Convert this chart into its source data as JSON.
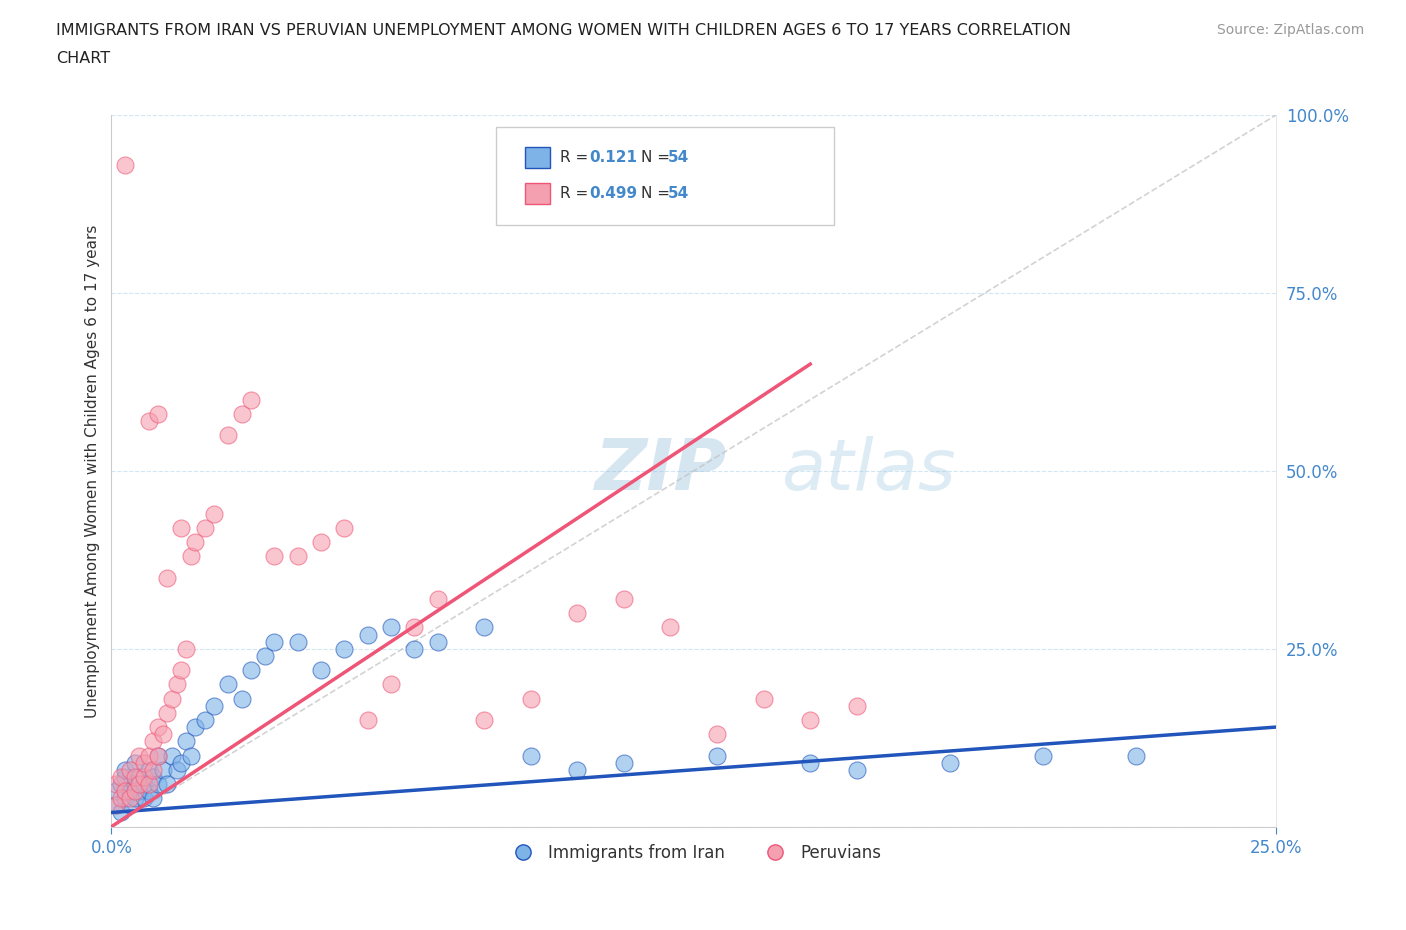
{
  "title_line1": "IMMIGRANTS FROM IRAN VS PERUVIAN UNEMPLOYMENT AMONG WOMEN WITH CHILDREN AGES 6 TO 17 YEARS CORRELATION",
  "title_line2": "CHART",
  "source_text": "Source: ZipAtlas.com",
  "ylabel": "Unemployment Among Women with Children Ages 6 to 17 years",
  "xlim": [
    0.0,
    0.25
  ],
  "ylim": [
    0.0,
    1.0
  ],
  "ytick_vals": [
    0.0,
    0.25,
    0.5,
    0.75,
    1.0
  ],
  "ytick_labels": [
    "",
    "25.0%",
    "50.0%",
    "75.0%",
    "100.0%"
  ],
  "xtick_vals": [
    0.0,
    0.25
  ],
  "xtick_labels": [
    "0.0%",
    "25.0%"
  ],
  "color_iran": "#7EB3E8",
  "color_peru": "#F5A0B0",
  "color_iran_line": "#2255BB",
  "color_peru_line": "#EE5577",
  "color_diag": "#C0C0C0",
  "watermark": "ZIPatlas",
  "watermark_color": "#C8DFF0",
  "legend_label1": "R =  0.121   N = 54",
  "legend_label2": "R = 0.499   N = 54",
  "legend_r1": "R =  0.121",
  "legend_r2": "R = 0.499",
  "legend_n": "N = 54",
  "iran_trend_x0": 0.0,
  "iran_trend_y0": 0.02,
  "iran_trend_x1": 0.25,
  "iran_trend_y1": 0.14,
  "peru_trend_x0": 0.0,
  "peru_trend_y0": 0.0,
  "peru_trend_x1": 0.15,
  "peru_trend_y1": 0.65,
  "iran_x": [
    0.001,
    0.001,
    0.002,
    0.002,
    0.003,
    0.003,
    0.003,
    0.004,
    0.004,
    0.005,
    0.005,
    0.005,
    0.006,
    0.006,
    0.007,
    0.007,
    0.008,
    0.008,
    0.009,
    0.009,
    0.01,
    0.01,
    0.011,
    0.012,
    0.013,
    0.014,
    0.015,
    0.016,
    0.017,
    0.018,
    0.02,
    0.022,
    0.025,
    0.028,
    0.03,
    0.033,
    0.035,
    0.04,
    0.045,
    0.05,
    0.055,
    0.06,
    0.065,
    0.07,
    0.08,
    0.09,
    0.1,
    0.11,
    0.13,
    0.15,
    0.16,
    0.18,
    0.2,
    0.22
  ],
  "iran_y": [
    0.03,
    0.05,
    0.02,
    0.06,
    0.04,
    0.07,
    0.08,
    0.03,
    0.05,
    0.04,
    0.06,
    0.09,
    0.05,
    0.07,
    0.04,
    0.06,
    0.05,
    0.08,
    0.04,
    0.07,
    0.06,
    0.1,
    0.08,
    0.06,
    0.1,
    0.08,
    0.09,
    0.12,
    0.1,
    0.14,
    0.15,
    0.17,
    0.2,
    0.18,
    0.22,
    0.24,
    0.26,
    0.26,
    0.22,
    0.25,
    0.27,
    0.28,
    0.25,
    0.26,
    0.28,
    0.1,
    0.08,
    0.09,
    0.1,
    0.09,
    0.08,
    0.09,
    0.1,
    0.1
  ],
  "peru_x": [
    0.001,
    0.001,
    0.002,
    0.002,
    0.003,
    0.003,
    0.004,
    0.004,
    0.005,
    0.005,
    0.006,
    0.006,
    0.007,
    0.007,
    0.008,
    0.008,
    0.009,
    0.009,
    0.01,
    0.01,
    0.011,
    0.012,
    0.013,
    0.014,
    0.015,
    0.016,
    0.017,
    0.018,
    0.02,
    0.022,
    0.025,
    0.028,
    0.03,
    0.035,
    0.04,
    0.045,
    0.05,
    0.055,
    0.06,
    0.065,
    0.07,
    0.08,
    0.09,
    0.1,
    0.11,
    0.12,
    0.13,
    0.14,
    0.15,
    0.16,
    0.008,
    0.01,
    0.012,
    0.015
  ],
  "peru_y": [
    0.03,
    0.06,
    0.04,
    0.07,
    0.05,
    0.93,
    0.04,
    0.08,
    0.05,
    0.07,
    0.06,
    0.1,
    0.07,
    0.09,
    0.06,
    0.1,
    0.08,
    0.12,
    0.1,
    0.14,
    0.13,
    0.16,
    0.18,
    0.2,
    0.22,
    0.25,
    0.38,
    0.4,
    0.42,
    0.44,
    0.55,
    0.58,
    0.6,
    0.38,
    0.38,
    0.4,
    0.42,
    0.15,
    0.2,
    0.28,
    0.32,
    0.15,
    0.18,
    0.3,
    0.32,
    0.28,
    0.13,
    0.18,
    0.15,
    0.17,
    0.57,
    0.58,
    0.35,
    0.42
  ]
}
